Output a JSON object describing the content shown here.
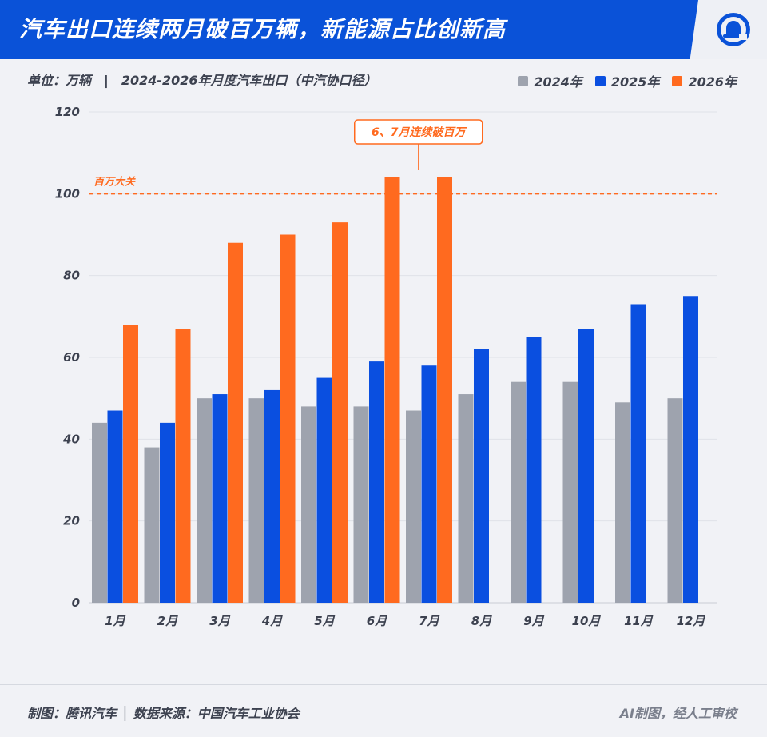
{
  "header": {
    "title": "汽车出口连续两月破百万辆，新能源占比创新高"
  },
  "subtitle": "单位：万辆　|　2024-2026年月度汽车出口（中汽协口径）",
  "footer": {
    "left": "制图：腾讯汽车 │ 数据来源：中国汽车工业协会",
    "right": "AI制图，经人工审校"
  },
  "icons": {
    "logo": "bell-icon"
  },
  "colors": {
    "header": "#0a52d8",
    "s2024": "#9ea3ae",
    "s2025": "#0a4fe0",
    "s2026": "#ff6a1f",
    "reference": "#ff6a1f"
  },
  "chart_data": {
    "type": "bar",
    "categories": [
      "1月",
      "2月",
      "3月",
      "4月",
      "5月",
      "6月",
      "7月",
      "8月",
      "9月",
      "10月",
      "11月",
      "12月"
    ],
    "series": [
      {
        "name": "2024年",
        "color": "#9ea3ae",
        "values": [
          44,
          38,
          50,
          50,
          48,
          48,
          47,
          51,
          54,
          54,
          49,
          50
        ]
      },
      {
        "name": "2025年",
        "color": "#0a4fe0",
        "values": [
          47,
          44,
          51,
          52,
          55,
          59,
          58,
          62,
          65,
          67,
          73,
          75
        ]
      },
      {
        "name": "2026年",
        "color": "#ff6a1f",
        "values": [
          68,
          67,
          88,
          90,
          93,
          104,
          104,
          null,
          null,
          null,
          null,
          null
        ]
      }
    ],
    "ylim": [
      0,
      120
    ],
    "yticks": [
      0,
      20,
      40,
      60,
      80,
      100,
      120
    ],
    "grid": true,
    "legend": "top-right",
    "reference_line": {
      "value": 100,
      "label": "百万大关"
    },
    "annotation": {
      "text": "6、7月连续破百万"
    }
  }
}
